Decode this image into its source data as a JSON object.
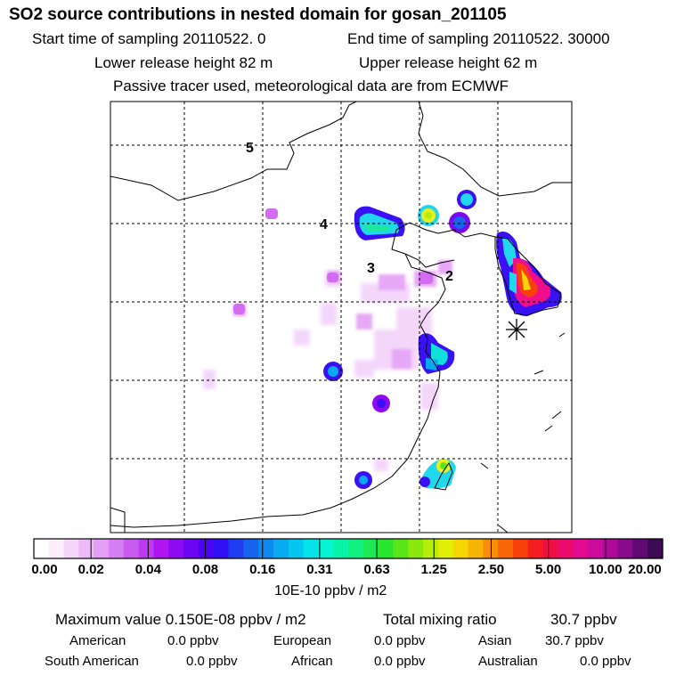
{
  "header": {
    "title": "SO2 source contributions in nested domain for gosan_201105",
    "start_time": "Start time of sampling 20110522.     0",
    "end_time": "End time of sampling 20110522. 30000",
    "lower_release": "Lower release height   82 m",
    "upper_release": "Upper release height   62 m",
    "tracer_info": "Passive tracer used, meteorological data are from ECMWF"
  },
  "map": {
    "region_labels": [
      "5",
      "4",
      "3",
      "2"
    ],
    "receptor_marker": "asterisk"
  },
  "colorbar": {
    "tick_labels": [
      "0.00",
      "0.02",
      "0.04",
      "0.08",
      "0.16",
      "0.31",
      "0.63",
      "1.25",
      "2.50",
      "5.00",
      "10.00",
      "20.00"
    ],
    "unit": "10E-10 ppbv / m2",
    "colors": [
      "#ffffff",
      "#fdeefe",
      "#f6d5fb",
      "#eebaf8",
      "#e39ef5",
      "#d57df2",
      "#c95cf0",
      "#be3af0",
      "#ad16ef",
      "#8e0af0",
      "#6a06f2",
      "#4b04f4",
      "#3110f5",
      "#1e3ef0",
      "#1564ee",
      "#0e88ee",
      "#08a9ee",
      "#04c6ef",
      "#04e2ea",
      "#05f4d2",
      "#08f3a8",
      "#10f080",
      "#1bea55",
      "#2ae52e",
      "#59e618",
      "#8ae80f",
      "#b8ec0a",
      "#e2ee06",
      "#f5d604",
      "#f6b404",
      "#f78e05",
      "#f76607",
      "#f7400b",
      "#f51d20",
      "#ef0e45",
      "#ec0a6b",
      "#e20a8f",
      "#cc0a9c",
      "#ad0a98",
      "#8a0a8e",
      "#620a73",
      "#3d0a55"
    ]
  },
  "stats": {
    "max_value": "Maximum value  0.150E-08 ppbv / m2",
    "total_label": "Total mixing ratio",
    "total_value": "30.7 ppbv",
    "rows": [
      [
        {
          "label": "American",
          "value": "0.0 ppbv"
        },
        {
          "label": "European",
          "value": "0.0 ppbv"
        },
        {
          "label": "Asian",
          "value": "30.7 ppbv"
        }
      ],
      [
        {
          "label": "South American",
          "value": "0.0 ppbv"
        },
        {
          "label": "African",
          "value": "0.0 ppbv"
        },
        {
          "label": "Australian",
          "value": "0.0 ppbv"
        }
      ]
    ]
  },
  "chart_data": {
    "type": "heatmap",
    "title": "SO2 source contributions in nested domain for gosan_201105",
    "colorbar_label": "10E-10 ppbv / m2",
    "colorbar_ticks": [
      0.0,
      0.02,
      0.04,
      0.08,
      0.16,
      0.31,
      0.63,
      1.25,
      2.5,
      5.0,
      10.0,
      20.0
    ],
    "max_value": "0.150E-08 ppbv / m2",
    "total_mixing_ratio_ppbv": 30.7,
    "contributions_ppbv": {
      "American": 0.0,
      "European": 0.0,
      "Asian": 30.7,
      "South American": 0.0,
      "African": 0.0,
      "Australian": 0.0
    },
    "contour_labels": [
      "5",
      "4",
      "3",
      "2"
    ]
  }
}
